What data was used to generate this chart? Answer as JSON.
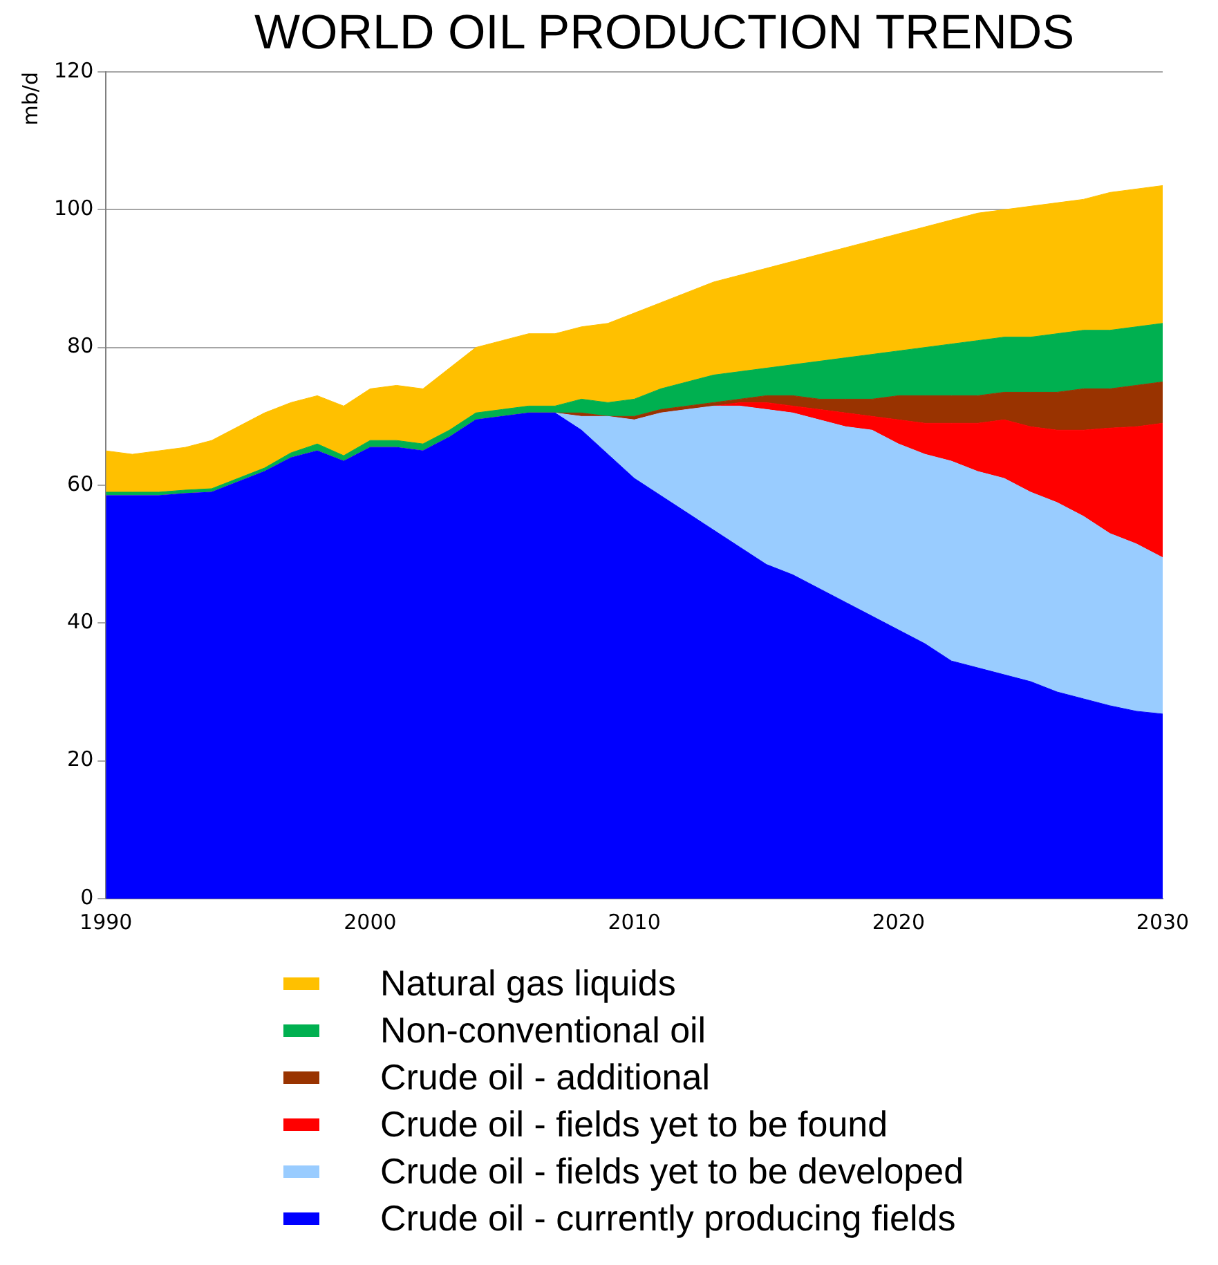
{
  "chart_data": {
    "type": "area",
    "title": "WORLD OIL PRODUCTION TRENDS",
    "ylabel": "mb/d",
    "stacked": true,
    "grid": "y",
    "legend": "bottom",
    "xlim": [
      1990,
      2030
    ],
    "xticks": [
      1990,
      2000,
      2010,
      2020,
      2030
    ],
    "ylim": [
      0,
      120
    ],
    "yticks": [
      0,
      20,
      40,
      60,
      80,
      100,
      120
    ],
    "x": [
      1990,
      1991,
      1992,
      1993,
      1994,
      1995,
      1996,
      1997,
      1998,
      1999,
      2000,
      2001,
      2002,
      2003,
      2004,
      2005,
      2006,
      2007,
      2008,
      2009,
      2010,
      2011,
      2012,
      2013,
      2014,
      2015,
      2016,
      2017,
      2018,
      2019,
      2020,
      2021,
      2022,
      2023,
      2024,
      2025,
      2026,
      2027,
      2028,
      2029,
      2030
    ],
    "series": [
      {
        "name": "Crude oil - currently producing fields",
        "color": "#0000ff",
        "values": [
          58.5,
          58.5,
          58.5,
          58.8,
          59,
          60.5,
          62,
          64,
          65,
          63.5,
          65.5,
          65.5,
          65,
          67,
          69.5,
          70,
          70.5,
          70.5,
          68,
          64.5,
          61,
          58.5,
          56,
          53.5,
          51,
          48.5,
          47,
          45,
          43,
          41,
          39,
          37,
          34.5,
          33.5,
          32.5,
          31.5,
          30,
          29,
          28,
          27.2,
          26.8
        ]
      },
      {
        "name": "Crude oil - fields yet to be developed",
        "color": "#99ccff",
        "values": [
          0,
          0,
          0,
          0,
          0,
          0,
          0,
          0,
          0,
          0,
          0,
          0,
          0,
          0,
          0,
          0,
          0,
          0,
          2,
          5.5,
          8.5,
          12,
          15,
          18,
          20.5,
          22.5,
          23.5,
          24.5,
          25.5,
          27,
          27,
          27.5,
          29,
          28.5,
          28.5,
          27.5,
          27.5,
          26.5,
          25,
          24.3,
          22.7
        ]
      },
      {
        "name": "Crude oil - fields yet to be found",
        "color": "#ff0000",
        "values": [
          0,
          0,
          0,
          0,
          0,
          0,
          0,
          0,
          0,
          0,
          0,
          0,
          0,
          0,
          0,
          0,
          0,
          0,
          0,
          0,
          0,
          0,
          0,
          0,
          0.5,
          1,
          1,
          1.5,
          2,
          2,
          3.5,
          4.5,
          5.5,
          7,
          8.5,
          9.5,
          10.5,
          12.5,
          15.3,
          17,
          19.5
        ]
      },
      {
        "name": "Crude oil - additional",
        "color": "#993300",
        "values": [
          0,
          0,
          0,
          0,
          0,
          0,
          0,
          0,
          0,
          0,
          0,
          0,
          0,
          0,
          0,
          0,
          0,
          0,
          0.5,
          0,
          0.5,
          0.5,
          0.5,
          0.5,
          0.5,
          1,
          1.5,
          1.5,
          2,
          2.5,
          3.5,
          4,
          4,
          4,
          4,
          5,
          5.5,
          6,
          5.7,
          6,
          6
        ]
      },
      {
        "name": "Non-conventional oil",
        "color": "#00b050",
        "values": [
          0.5,
          0.5,
          0.5,
          0.5,
          0.5,
          0.5,
          0.5,
          0.7,
          1,
          0.8,
          1,
          1,
          1,
          1,
          1,
          1,
          1,
          1,
          2,
          2,
          2.5,
          3,
          3.5,
          4,
          4,
          4,
          4.5,
          5.5,
          6,
          6.5,
          6.5,
          7,
          7.5,
          8,
          8,
          8,
          8.5,
          8.5,
          8.5,
          8.5,
          8.5
        ]
      },
      {
        "name": "Natural gas liquids",
        "color": "#ffc000",
        "values": [
          6,
          5.5,
          6,
          6.2,
          7,
          7.5,
          8,
          7.3,
          7,
          7.2,
          7.5,
          8,
          8,
          9,
          9.5,
          10,
          10.5,
          10.5,
          10.5,
          11.5,
          12.5,
          12.5,
          13,
          13.5,
          14,
          14.5,
          15,
          15.5,
          16,
          16.5,
          17,
          17.5,
          18,
          18.5,
          18.5,
          19,
          19,
          19,
          20,
          20,
          20
        ]
      }
    ]
  }
}
